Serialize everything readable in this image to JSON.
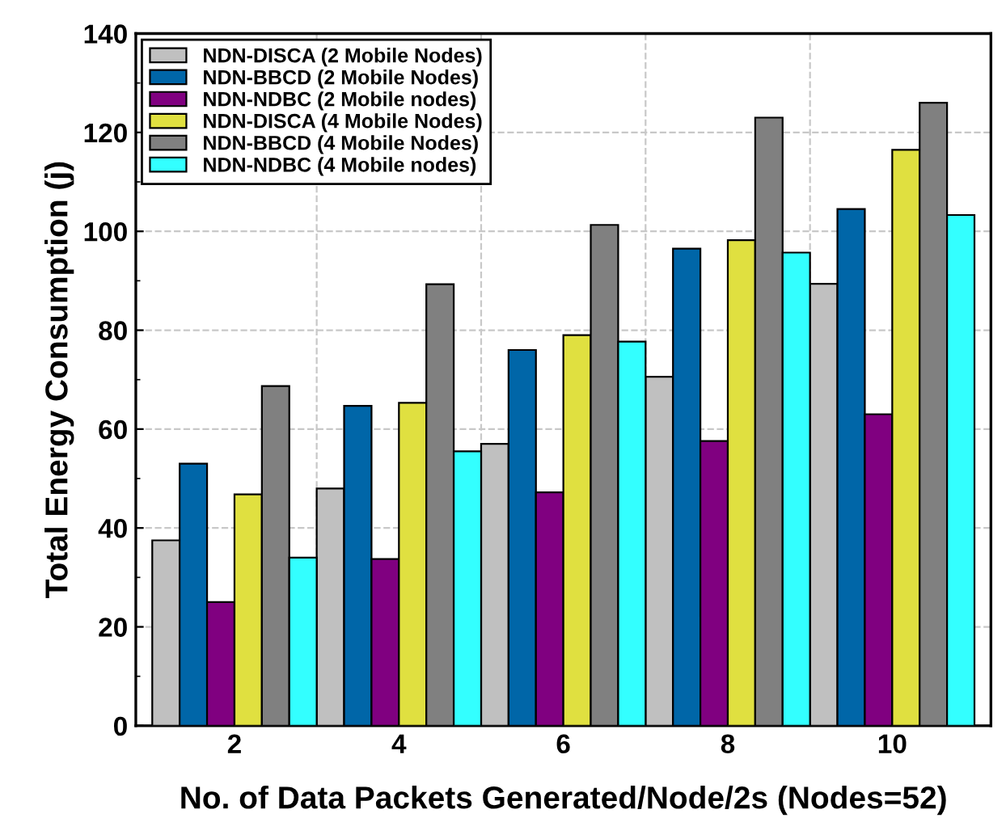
{
  "chart_data": {
    "type": "bar",
    "xlabel": "No. of Data Packets Generated/Node/2s (Nodes=52)",
    "ylabel": "Total Energy Consumption (j)",
    "categories": [
      "2",
      "4",
      "6",
      "8",
      "10"
    ],
    "series": [
      {
        "name": "NDN-DISCA (2 Mobile Nodes)",
        "color": "#c0c0c0",
        "values": [
          37.5,
          48,
          57,
          70.6,
          89.4
        ]
      },
      {
        "name": "NDN-BBCD (2 Mobile Nodes)",
        "color": "#0066a8",
        "values": [
          53,
          64.7,
          76,
          96.5,
          104.5
        ]
      },
      {
        "name": "NDN-NDBC (2 Mobile nodes)",
        "color": "#800080",
        "values": [
          25,
          33.7,
          47.2,
          57.6,
          63
        ]
      },
      {
        "name": "NDN-DISCA (4 Mobile Nodes)",
        "color": "#e0e040",
        "values": [
          46.8,
          65.3,
          79,
          98.2,
          116.5
        ]
      },
      {
        "name": "NDN-BBCD (4 Mobile Nodes)",
        "color": "#808080",
        "values": [
          68.7,
          89.3,
          101.3,
          123,
          126
        ]
      },
      {
        "name": "NDN-NDBC (4 Mobile nodes)",
        "color": "#33ffff",
        "values": [
          34,
          55.5,
          77.7,
          95.7,
          103.3
        ]
      }
    ],
    "ylim": [
      0,
      140
    ],
    "yticks": [
      0,
      20,
      40,
      60,
      80,
      100,
      120,
      140
    ],
    "grid": true,
    "legend": "top left"
  }
}
